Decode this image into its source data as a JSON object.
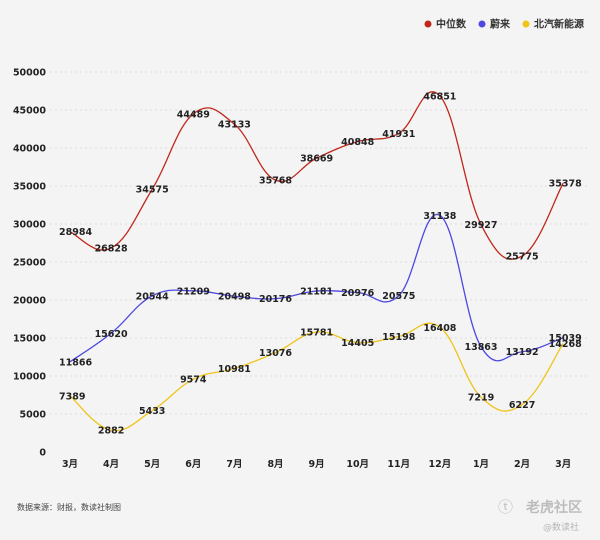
{
  "chart_data": {
    "type": "line",
    "categories": [
      "3月",
      "4月",
      "5月",
      "6月",
      "7月",
      "8月",
      "9月",
      "10月",
      "11月",
      "12月",
      "1月",
      "2月",
      "3月"
    ],
    "ylim": [
      0,
      50000
    ],
    "yticks": [
      "0",
      "5000",
      "10000",
      "15000",
      "20000",
      "25000",
      "30000",
      "35000",
      "40000",
      "45000",
      "50000"
    ],
    "grid": true,
    "legend_position": "top-right",
    "series": [
      {
        "name": "中位数",
        "color": "#c0281c",
        "values": [
          28984,
          26828,
          34575,
          44489,
          43133,
          35768,
          38669,
          40848,
          41931,
          46851,
          29927,
          25775,
          35378
        ],
        "labels": [
          "28984",
          "26828",
          "34575",
          "44489",
          "43133",
          "35768",
          "38669",
          "40848",
          "41931",
          "46851",
          "29927",
          "25775",
          "35378"
        ]
      },
      {
        "name": "蔚来",
        "color": "#4d48e0",
        "values": [
          11866,
          15620,
          20544,
          21209,
          20498,
          20176,
          21181,
          20976,
          20575,
          31138,
          13863,
          13192,
          15039
        ],
        "labels": [
          "11866",
          "15620",
          "20544",
          "21209",
          "20498",
          "20176",
          "21181",
          "20976",
          "20575",
          "31138",
          "13863",
          "13192",
          "15039"
        ]
      },
      {
        "name": "北汽新能源",
        "color": "#f0c419",
        "values": [
          7389,
          2882,
          5433,
          9574,
          10981,
          13076,
          15781,
          14405,
          15198,
          16408,
          7219,
          6227,
          14268
        ],
        "labels": [
          "7389",
          "2882",
          "5433",
          "9574",
          "10981",
          "13076",
          "15781",
          "14405",
          "15198",
          "16408",
          "7219",
          "6227",
          "14268"
        ]
      }
    ]
  },
  "footer": {
    "source": "数据来源：财报，数读社制图"
  },
  "watermark": {
    "logo_icon": "tiger-logo-icon",
    "main": "老虎社区",
    "sub": "@数读社"
  }
}
